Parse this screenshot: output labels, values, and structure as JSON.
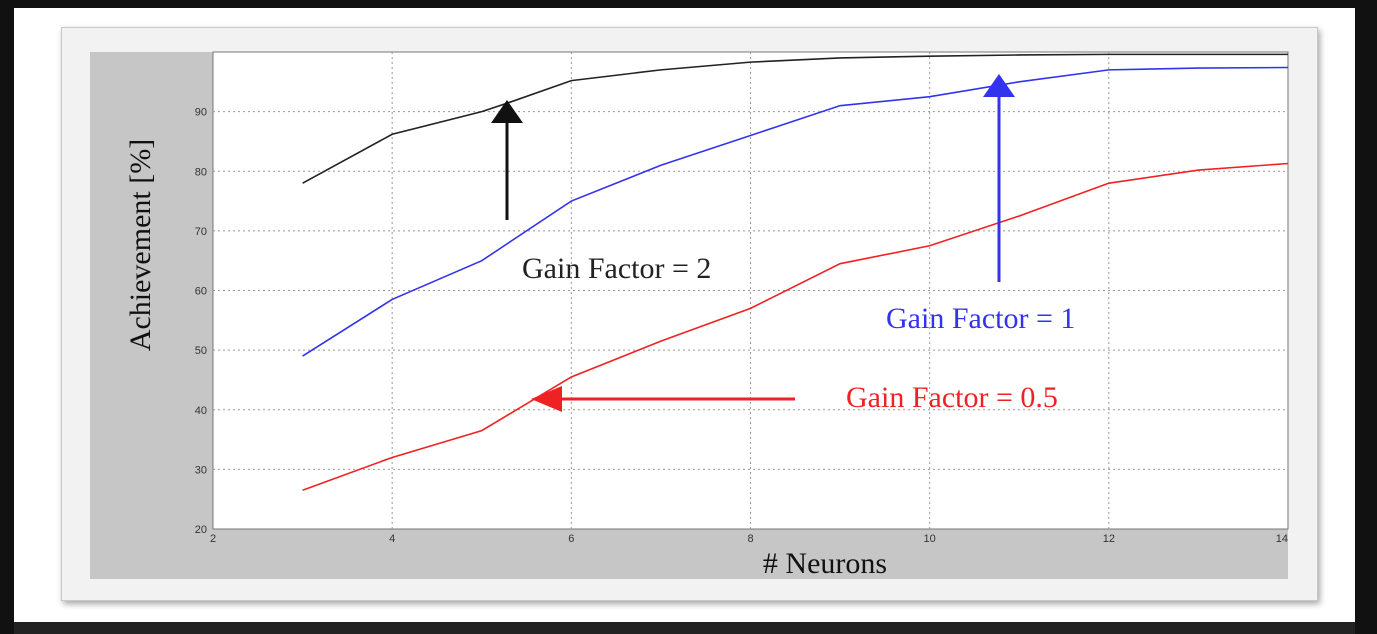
{
  "chart_data": {
    "type": "line",
    "xlabel": "# Neurons",
    "ylabel": "Achievement [%]",
    "xlim": [
      2,
      14
    ],
    "ylim": [
      20,
      100
    ],
    "x_ticks": [
      "2",
      "4",
      "6",
      "8",
      "10",
      "12",
      "14"
    ],
    "y_ticks": [
      "20",
      "30",
      "40",
      "50",
      "60",
      "70",
      "80",
      "90"
    ],
    "grid": true,
    "series": [
      {
        "name": "Gain Factor = 2",
        "color": "#222222",
        "x": [
          3,
          4,
          5,
          5.3,
          6,
          7,
          8,
          9,
          10,
          11,
          12,
          13,
          14
        ],
        "y": [
          78,
          86.2,
          90,
          91.5,
          95.2,
          97,
          98.3,
          99,
          99.3,
          99.5,
          99.6,
          99.6,
          99.6
        ]
      },
      {
        "name": "Gain Factor = 1",
        "color": "#3333ee",
        "x": [
          3,
          4,
          5,
          6,
          7,
          8,
          9,
          10,
          11,
          12,
          13,
          14
        ],
        "y": [
          49,
          58.5,
          65,
          75,
          81,
          86,
          91,
          92.5,
          95,
          97,
          97.3,
          97.4
        ]
      },
      {
        "name": "Gain Factor = 0.5",
        "color": "#ee2222",
        "x": [
          3,
          4,
          5,
          6,
          7,
          8,
          9,
          10,
          11,
          12,
          13,
          14
        ],
        "y": [
          26.5,
          32,
          36.5,
          45.5,
          51.5,
          57,
          64.5,
          67.5,
          72.5,
          78,
          80.2,
          81.3
        ]
      }
    ],
    "annotations": [
      {
        "text": "Gain Factor = 2",
        "color": "#222222"
      },
      {
        "text": "Gain Factor = 1",
        "color": "#3333ee"
      },
      {
        "text": "Gain Factor = 0.5",
        "color": "#ee2222"
      }
    ]
  }
}
